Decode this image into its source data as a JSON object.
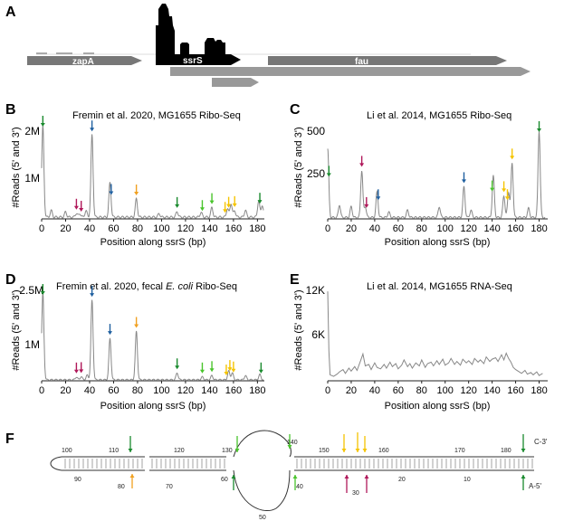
{
  "panel_a": {
    "letter": "A",
    "genes": [
      {
        "label": "zapA",
        "fill": "#777777",
        "text_color": "#ffffff"
      },
      {
        "label": "ssrS",
        "fill": "#000000",
        "text_color": "#ffffff"
      },
      {
        "label": "fau",
        "fill": "#777777",
        "text_color": "#ffffff"
      }
    ]
  },
  "colors": {
    "trace": "#888888",
    "arrow_red": "#b0185a",
    "arrow_blue": "#1f5f9f",
    "arrow_orange": "#f0a020",
    "arrow_green": "#1a8a2e",
    "arrow_lightgreen": "#49c42c",
    "arrow_yellow": "#f5c400"
  },
  "panels": {
    "B": {
      "letter": "B",
      "title": "Fremin et al. 2020, MG1655 Ribo-Seq",
      "ylabel": "#Reads (5' and 3')",
      "xlabel": "Position along ssrS (bp)",
      "yticks": [
        "2M",
        "1M"
      ],
      "xticks": [
        "0",
        "20",
        "40",
        "60",
        "80",
        "100",
        "120",
        "140",
        "160",
        "180"
      ]
    },
    "C": {
      "letter": "C",
      "title": "Li et al. 2014, MG1655 Ribo-Seq",
      "ylabel": "#Reads (5' and 3')",
      "xlabel": "Position along ssrS (bp)",
      "yticks": [
        "500",
        "250"
      ],
      "xticks": [
        "0",
        "20",
        "40",
        "60",
        "80",
        "100",
        "120",
        "140",
        "160",
        "180"
      ]
    },
    "D": {
      "letter": "D",
      "title_pre": "Fremin et al. 2020, fecal ",
      "title_italic": "E. coli",
      "title_post": " Ribo-Seq",
      "ylabel": "#Reads (5' and 3')",
      "xlabel": "Position along ssrS (bp)",
      "yticks": [
        "2.5M",
        "1M"
      ],
      "xticks": [
        "0",
        "20",
        "40",
        "60",
        "80",
        "100",
        "120",
        "140",
        "160",
        "180"
      ]
    },
    "E": {
      "letter": "E",
      "title": "Li et al. 2014, MG1655 RNA-Seq",
      "ylabel": "#Reads (5' and 3')",
      "xlabel": "Position along ssrS (bp)",
      "yticks": [
        "12K",
        "6K"
      ],
      "xticks": [
        "0",
        "20",
        "40",
        "60",
        "80",
        "100",
        "120",
        "140",
        "160",
        "180"
      ]
    }
  },
  "panel_f": {
    "letter": "F",
    "numbers": [
      "100",
      "110",
      "120",
      "130",
      "140",
      "150",
      "160",
      "170",
      "180",
      "90",
      "80",
      "70",
      "60",
      "50",
      "40",
      "30",
      "20",
      "10"
    ],
    "labels": [
      "C-3'",
      "A-5'"
    ]
  },
  "chart_data": [
    {
      "panel": "B",
      "type": "line",
      "xlim": [
        0,
        185
      ],
      "ylim": [
        0,
        2300000
      ],
      "y_unit": "reads",
      "peaks": [
        [
          1,
          2100000
        ],
        [
          8,
          150000
        ],
        [
          20,
          120000
        ],
        [
          29,
          90000
        ],
        [
          32,
          80000
        ],
        [
          37,
          150000
        ],
        [
          42,
          1900000
        ],
        [
          57,
          800000
        ],
        [
          79,
          420000
        ],
        [
          98,
          80000
        ],
        [
          113,
          130000
        ],
        [
          133,
          110000
        ],
        [
          142,
          220000
        ],
        [
          155,
          200000
        ],
        [
          158,
          320000
        ],
        [
          161,
          150000
        ],
        [
          170,
          160000
        ],
        [
          181,
          380000
        ],
        [
          184,
          280000
        ]
      ],
      "baseline": 40000,
      "arrows": [
        {
          "x": 1,
          "color": "arrow_green"
        },
        {
          "x": 29,
          "color": "arrow_red"
        },
        {
          "x": 33,
          "color": "arrow_red"
        },
        {
          "x": 42,
          "color": "arrow_blue"
        },
        {
          "x": 58,
          "color": "arrow_blue"
        },
        {
          "x": 79,
          "color": "arrow_orange"
        },
        {
          "x": 113,
          "color": "arrow_green"
        },
        {
          "x": 134,
          "color": "arrow_lightgreen"
        },
        {
          "x": 142,
          "color": "arrow_lightgreen"
        },
        {
          "x": 153,
          "color": "arrow_yellow"
        },
        {
          "x": 156,
          "color": "arrow_yellow"
        },
        {
          "x": 161,
          "color": "arrow_yellow"
        },
        {
          "x": 182,
          "color": "arrow_green"
        }
      ]
    },
    {
      "panel": "C",
      "type": "line",
      "xlim": [
        0,
        185
      ],
      "ylim": [
        0,
        520
      ],
      "y_unit": "reads",
      "peaks": [
        [
          0,
          380
        ],
        [
          10,
          70
        ],
        [
          20,
          60
        ],
        [
          29,
          260
        ],
        [
          32,
          60
        ],
        [
          42,
          140
        ],
        [
          52,
          30
        ],
        [
          68,
          40
        ],
        [
          95,
          60
        ],
        [
          116,
          170
        ],
        [
          122,
          40
        ],
        [
          141,
          230
        ],
        [
          150,
          120
        ],
        [
          154,
          140
        ],
        [
          157,
          300
        ],
        [
          171,
          50
        ],
        [
          180,
          480
        ]
      ],
      "baseline": 8,
      "arrows": [
        {
          "x": 1,
          "color": "arrow_green"
        },
        {
          "x": 29,
          "color": "arrow_red"
        },
        {
          "x": 33,
          "color": "arrow_red"
        },
        {
          "x": 43,
          "color": "arrow_blue"
        },
        {
          "x": 116,
          "color": "arrow_blue"
        },
        {
          "x": 140,
          "color": "arrow_lightgreen"
        },
        {
          "x": 150,
          "color": "arrow_yellow"
        },
        {
          "x": 153,
          "color": "arrow_yellow"
        },
        {
          "x": 157,
          "color": "arrow_yellow"
        },
        {
          "x": 180,
          "color": "arrow_green"
        }
      ]
    },
    {
      "panel": "D",
      "type": "line",
      "xlim": [
        0,
        185
      ],
      "ylim": [
        0,
        2700000
      ],
      "y_unit": "reads",
      "peaks": [
        [
          1,
          2500000
        ],
        [
          29,
          80000
        ],
        [
          33,
          90000
        ],
        [
          38,
          130000
        ],
        [
          42,
          2300000
        ],
        [
          57,
          1200000
        ],
        [
          79,
          1400000
        ],
        [
          113,
          200000
        ],
        [
          134,
          80000
        ],
        [
          142,
          120000
        ],
        [
          156,
          250000
        ],
        [
          159,
          200000
        ],
        [
          170,
          120000
        ],
        [
          182,
          150000
        ]
      ],
      "baseline": 30000,
      "arrows": [
        {
          "x": 1,
          "color": "arrow_green"
        },
        {
          "x": 29,
          "color": "arrow_red"
        },
        {
          "x": 33,
          "color": "arrow_red"
        },
        {
          "x": 42,
          "color": "arrow_blue"
        },
        {
          "x": 57,
          "color": "arrow_blue"
        },
        {
          "x": 79,
          "color": "arrow_orange"
        },
        {
          "x": 113,
          "color": "arrow_green"
        },
        {
          "x": 134,
          "color": "arrow_lightgreen"
        },
        {
          "x": 142,
          "color": "arrow_lightgreen"
        },
        {
          "x": 154,
          "color": "arrow_yellow"
        },
        {
          "x": 157,
          "color": "arrow_yellow"
        },
        {
          "x": 160,
          "color": "arrow_yellow"
        },
        {
          "x": 183,
          "color": "arrow_green"
        }
      ]
    },
    {
      "panel": "E",
      "type": "line",
      "xlim": [
        0,
        185
      ],
      "ylim": [
        0,
        12500
      ],
      "y_unit": "reads",
      "profile": [
        [
          0,
          12000
        ],
        [
          1,
          4000
        ],
        [
          2,
          800
        ],
        [
          5,
          600
        ],
        [
          8,
          900
        ],
        [
          10,
          1200
        ],
        [
          13,
          1500
        ],
        [
          15,
          1000
        ],
        [
          18,
          1700
        ],
        [
          20,
          1300
        ],
        [
          23,
          1900
        ],
        [
          25,
          1400
        ],
        [
          28,
          2700
        ],
        [
          30,
          3600
        ],
        [
          32,
          2000
        ],
        [
          35,
          2200
        ],
        [
          37,
          1500
        ],
        [
          40,
          2400
        ],
        [
          42,
          1800
        ],
        [
          45,
          1600
        ],
        [
          48,
          2200
        ],
        [
          50,
          1700
        ],
        [
          53,
          2500
        ],
        [
          55,
          1900
        ],
        [
          58,
          2300
        ],
        [
          60,
          1600
        ],
        [
          63,
          2100
        ],
        [
          65,
          2800
        ],
        [
          68,
          1900
        ],
        [
          70,
          2300
        ],
        [
          72,
          1700
        ],
        [
          75,
          2400
        ],
        [
          78,
          2000
        ],
        [
          80,
          2800
        ],
        [
          83,
          1800
        ],
        [
          85,
          2300
        ],
        [
          88,
          2500
        ],
        [
          90,
          2000
        ],
        [
          93,
          2700
        ],
        [
          95,
          2200
        ],
        [
          98,
          2900
        ],
        [
          100,
          2100
        ],
        [
          103,
          2400
        ],
        [
          105,
          3000
        ],
        [
          108,
          2200
        ],
        [
          110,
          2600
        ],
        [
          113,
          2100
        ],
        [
          115,
          2900
        ],
        [
          118,
          2400
        ],
        [
          120,
          2700
        ],
        [
          123,
          2200
        ],
        [
          125,
          3000
        ],
        [
          128,
          2500
        ],
        [
          130,
          2800
        ],
        [
          133,
          2300
        ],
        [
          135,
          3200
        ],
        [
          138,
          2600
        ],
        [
          140,
          2900
        ],
        [
          143,
          3100
        ],
        [
          145,
          2600
        ],
        [
          148,
          3500
        ],
        [
          150,
          2800
        ],
        [
          152,
          3700
        ],
        [
          154,
          3000
        ],
        [
          156,
          2500
        ],
        [
          158,
          1800
        ],
        [
          160,
          1500
        ],
        [
          163,
          1200
        ],
        [
          165,
          1000
        ],
        [
          168,
          1400
        ],
        [
          170,
          900
        ],
        [
          173,
          1100
        ],
        [
          175,
          800
        ],
        [
          178,
          1200
        ],
        [
          180,
          700
        ],
        [
          183,
          1000
        ]
      ]
    }
  ]
}
